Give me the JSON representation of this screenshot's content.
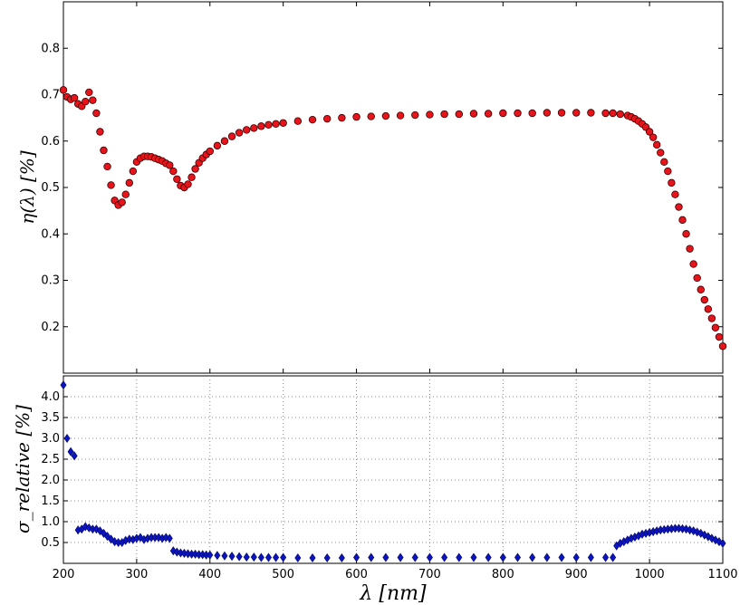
{
  "chart_data": [
    {
      "type": "scatter",
      "title": "",
      "xlabel": "λ [nm]",
      "ylabel": "η(λ) [%]",
      "xlim": [
        200,
        1100
      ],
      "ylim": [
        0.1,
        0.9
      ],
      "xticks": [
        200,
        300,
        400,
        500,
        600,
        700,
        800,
        900,
        1000,
        1100
      ],
      "yticks": [
        "0.2",
        "0.3",
        "0.4",
        "0.5",
        "0.6",
        "0.7",
        "0.8"
      ],
      "grid": false,
      "marker": "circle",
      "color": "#e8141c",
      "series": [
        {
          "x": [
            200,
            205,
            210,
            215,
            220,
            225,
            230,
            235,
            240,
            245,
            250,
            255,
            260,
            265,
            270,
            275,
            280,
            285,
            290,
            295,
            300,
            305,
            310,
            315,
            320,
            325,
            330,
            335,
            340,
            345,
            350,
            355,
            360,
            365,
            370,
            375,
            380,
            385,
            390,
            395,
            400,
            410,
            420,
            430,
            440,
            450,
            460,
            470,
            480,
            490,
            500,
            520,
            540,
            560,
            580,
            600,
            620,
            640,
            660,
            680,
            700,
            720,
            740,
            760,
            780,
            800,
            820,
            840,
            860,
            880,
            900,
            920,
            940,
            950,
            960,
            970,
            975,
            980,
            985,
            990,
            995,
            1000,
            1005,
            1010,
            1015,
            1020,
            1025,
            1030,
            1035,
            1040,
            1045,
            1050,
            1055,
            1060,
            1065,
            1070,
            1075,
            1080,
            1085,
            1090,
            1095,
            1100
          ],
          "y": [
            0.71,
            0.695,
            0.69,
            0.693,
            0.68,
            0.675,
            0.685,
            0.705,
            0.688,
            0.66,
            0.62,
            0.58,
            0.545,
            0.505,
            0.472,
            0.462,
            0.468,
            0.485,
            0.51,
            0.535,
            0.555,
            0.563,
            0.567,
            0.567,
            0.566,
            0.563,
            0.56,
            0.557,
            0.552,
            0.548,
            0.535,
            0.518,
            0.504,
            0.5,
            0.507,
            0.522,
            0.54,
            0.553,
            0.563,
            0.571,
            0.578,
            0.59,
            0.6,
            0.61,
            0.618,
            0.624,
            0.628,
            0.632,
            0.635,
            0.637,
            0.639,
            0.643,
            0.646,
            0.648,
            0.65,
            0.652,
            0.653,
            0.654,
            0.655,
            0.656,
            0.657,
            0.658,
            0.658,
            0.659,
            0.659,
            0.66,
            0.66,
            0.66,
            0.661,
            0.661,
            0.661,
            0.661,
            0.66,
            0.66,
            0.658,
            0.655,
            0.652,
            0.648,
            0.643,
            0.637,
            0.63,
            0.62,
            0.608,
            0.592,
            0.575,
            0.555,
            0.535,
            0.51,
            0.485,
            0.458,
            0.43,
            0.4,
            0.368,
            0.335,
            0.305,
            0.28,
            0.258,
            0.238,
            0.218,
            0.198,
            0.178,
            0.158
          ]
        }
      ]
    },
    {
      "type": "scatter",
      "title": "",
      "xlabel": "λ [nm]",
      "ylabel": "σ_relative [%]",
      "xlim": [
        200,
        1100
      ],
      "ylim": [
        0.0,
        4.5
      ],
      "xticks": [
        200,
        300,
        400,
        500,
        600,
        700,
        800,
        900,
        1000,
        1100
      ],
      "yticks": [
        "0.5",
        "1.0",
        "1.5",
        "2.0",
        "2.5",
        "3.0",
        "3.5",
        "4.0"
      ],
      "grid": true,
      "marker": "diamond",
      "color": "#0b14c0",
      "series": [
        {
          "x": [
            200,
            205,
            210,
            215,
            220,
            225,
            230,
            235,
            240,
            245,
            250,
            255,
            260,
            265,
            270,
            275,
            280,
            285,
            290,
            295,
            300,
            305,
            310,
            315,
            320,
            325,
            330,
            335,
            340,
            345,
            350,
            355,
            360,
            365,
            370,
            375,
            380,
            385,
            390,
            395,
            400,
            410,
            420,
            430,
            440,
            450,
            460,
            470,
            480,
            490,
            500,
            520,
            540,
            560,
            580,
            600,
            620,
            640,
            660,
            680,
            700,
            720,
            740,
            760,
            780,
            800,
            820,
            840,
            860,
            880,
            900,
            920,
            940,
            950,
            955,
            960,
            965,
            970,
            975,
            980,
            985,
            990,
            995,
            1000,
            1005,
            1010,
            1015,
            1020,
            1025,
            1030,
            1035,
            1040,
            1045,
            1050,
            1055,
            1060,
            1065,
            1070,
            1075,
            1080,
            1085,
            1090,
            1095,
            1100
          ],
          "y": [
            4.28,
            3.0,
            2.68,
            2.58,
            0.8,
            0.82,
            0.88,
            0.85,
            0.82,
            0.82,
            0.78,
            0.72,
            0.65,
            0.58,
            0.52,
            0.5,
            0.5,
            0.55,
            0.58,
            0.57,
            0.6,
            0.62,
            0.57,
            0.6,
            0.62,
            0.62,
            0.62,
            0.6,
            0.62,
            0.6,
            0.3,
            0.27,
            0.25,
            0.24,
            0.23,
            0.22,
            0.22,
            0.21,
            0.21,
            0.2,
            0.2,
            0.19,
            0.18,
            0.17,
            0.16,
            0.15,
            0.15,
            0.14,
            0.14,
            0.14,
            0.14,
            0.13,
            0.13,
            0.13,
            0.13,
            0.14,
            0.14,
            0.14,
            0.14,
            0.14,
            0.14,
            0.14,
            0.14,
            0.14,
            0.14,
            0.14,
            0.14,
            0.14,
            0.14,
            0.14,
            0.14,
            0.14,
            0.14,
            0.14,
            0.42,
            0.48,
            0.52,
            0.56,
            0.6,
            0.63,
            0.66,
            0.7,
            0.72,
            0.74,
            0.76,
            0.78,
            0.8,
            0.81,
            0.82,
            0.83,
            0.84,
            0.84,
            0.83,
            0.82,
            0.8,
            0.78,
            0.75,
            0.72,
            0.68,
            0.64,
            0.6,
            0.56,
            0.52,
            0.48
          ]
        }
      ]
    }
  ]
}
